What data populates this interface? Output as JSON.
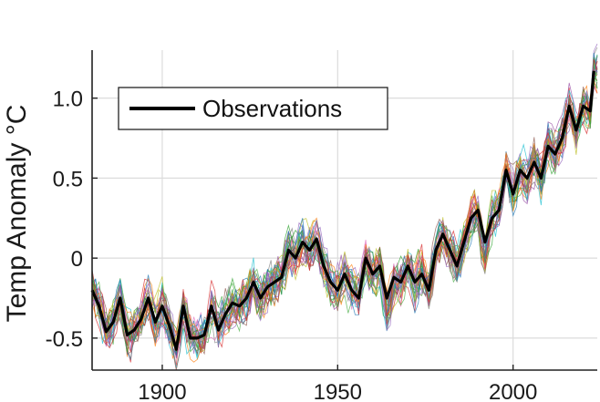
{
  "chart_data": {
    "type": "line",
    "title": "",
    "xlabel": "",
    "ylabel": "Temp Anomaly °C",
    "xlim": [
      1880,
      2024
    ],
    "ylim": [
      -0.7,
      1.3
    ],
    "xticks": [
      1900,
      1950,
      2000
    ],
    "yticks": [
      -0.5,
      0,
      0.5,
      1.0
    ],
    "xtick_labels": [
      "1900",
      "1950",
      "2000"
    ],
    "ytick_labels": [
      "-0.5",
      "0",
      "0.5",
      "1.0"
    ],
    "grid": true,
    "legend": {
      "placement": "top-left",
      "entries": [
        "Observations"
      ]
    },
    "observations": {
      "name": "Observations",
      "color": "#000000",
      "x": [
        1880,
        1882,
        1884,
        1886,
        1888,
        1890,
        1892,
        1894,
        1896,
        1898,
        1900,
        1902,
        1904,
        1906,
        1908,
        1910,
        1912,
        1914,
        1916,
        1918,
        1920,
        1922,
        1924,
        1926,
        1928,
        1930,
        1932,
        1934,
        1936,
        1938,
        1940,
        1942,
        1944,
        1946,
        1948,
        1950,
        1952,
        1954,
        1956,
        1958,
        1960,
        1962,
        1964,
        1966,
        1968,
        1970,
        1972,
        1974,
        1976,
        1978,
        1980,
        1982,
        1984,
        1986,
        1988,
        1990,
        1992,
        1994,
        1996,
        1998,
        2000,
        2002,
        2004,
        2006,
        2008,
        2010,
        2012,
        2014,
        2016,
        2018,
        2020,
        2022,
        2023
      ],
      "y": [
        -0.2,
        -0.3,
        -0.46,
        -0.4,
        -0.25,
        -0.48,
        -0.45,
        -0.38,
        -0.25,
        -0.4,
        -0.3,
        -0.42,
        -0.57,
        -0.3,
        -0.5,
        -0.5,
        -0.48,
        -0.3,
        -0.45,
        -0.35,
        -0.28,
        -0.3,
        -0.25,
        -0.15,
        -0.25,
        -0.18,
        -0.15,
        -0.12,
        0.05,
        0.0,
        0.1,
        0.05,
        0.12,
        -0.05,
        -0.15,
        -0.2,
        -0.1,
        -0.2,
        -0.25,
        0.0,
        -0.1,
        -0.05,
        -0.25,
        -0.12,
        -0.15,
        -0.05,
        -0.15,
        -0.1,
        -0.2,
        0.05,
        0.15,
        0.05,
        -0.05,
        0.1,
        0.25,
        0.3,
        0.1,
        0.25,
        0.3,
        0.55,
        0.4,
        0.55,
        0.5,
        0.6,
        0.5,
        0.7,
        0.65,
        0.75,
        0.95,
        0.8,
        0.95,
        0.92,
        1.17
      ]
    },
    "ensemble": {
      "count": 30,
      "colors": [
        "#1f77b4",
        "#ff7f0e",
        "#2ca02c",
        "#d62728",
        "#9467bd",
        "#8c564b",
        "#e377c2",
        "#17becf",
        "#bcbd22",
        "#7f7f7f",
        "#4daf4a",
        "#984ea3"
      ]
    }
  }
}
